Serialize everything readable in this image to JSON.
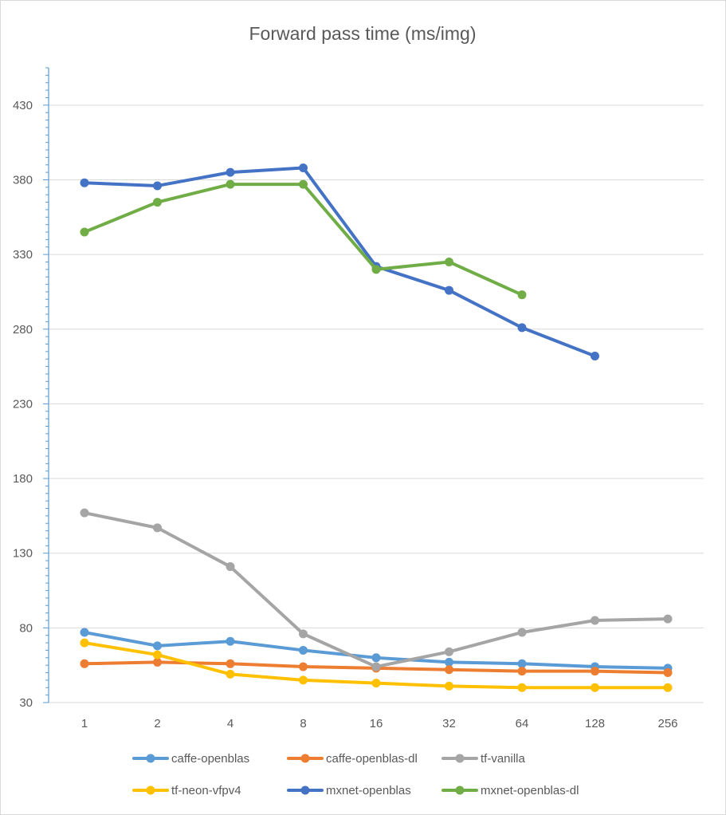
{
  "chart_data": {
    "type": "line",
    "title": "Forward pass time (ms/img)",
    "xlabel": "",
    "ylabel": "",
    "categories": [
      "1",
      "2",
      "4",
      "8",
      "16",
      "32",
      "64",
      "128",
      "256"
    ],
    "ylim": [
      30,
      455
    ],
    "yticks": [
      30,
      80,
      130,
      180,
      230,
      280,
      330,
      380,
      430
    ],
    "grid": true,
    "legend_position": "bottom",
    "series": [
      {
        "name": "caffe-openblas",
        "color": "#5b9bd5",
        "values": [
          77,
          68,
          71,
          65,
          60,
          57,
          56,
          54,
          53
        ]
      },
      {
        "name": "caffe-openblas-dl",
        "color": "#ed7d31",
        "values": [
          56,
          57,
          56,
          54,
          53,
          52,
          51,
          51,
          50
        ]
      },
      {
        "name": "tf-vanilla",
        "color": "#a5a5a5",
        "values": [
          157,
          147,
          121,
          76,
          54,
          64,
          77,
          85,
          86
        ]
      },
      {
        "name": "tf-neon-vfpv4",
        "color": "#ffc000",
        "values": [
          70,
          62,
          49,
          45,
          43,
          41,
          40,
          40,
          40
        ]
      },
      {
        "name": "mxnet-openblas",
        "color": "#4472c4",
        "values": [
          378,
          376,
          385,
          388,
          322,
          306,
          281,
          262,
          null
        ]
      },
      {
        "name": "mxnet-openblas-dl",
        "color": "#70ad47",
        "values": [
          345,
          365,
          377,
          377,
          320,
          325,
          303,
          null,
          null
        ]
      }
    ]
  }
}
